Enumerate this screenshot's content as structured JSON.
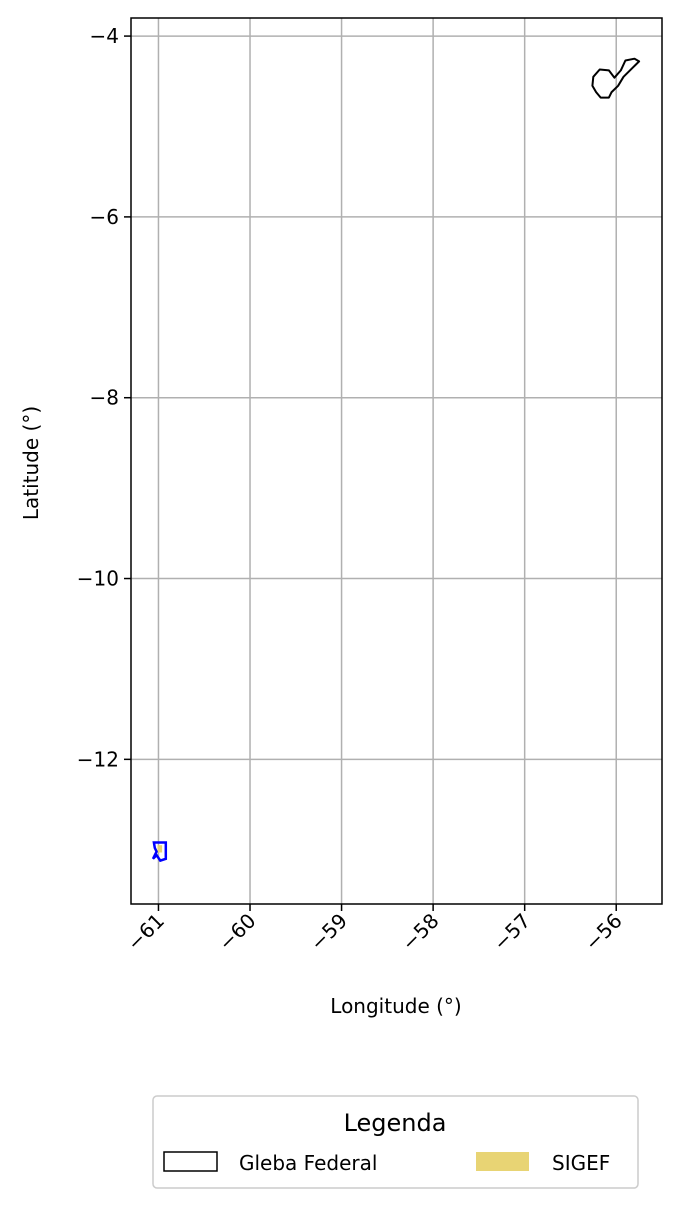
{
  "chart_data": {
    "type": "map",
    "xlabel": "Longitude (°)",
    "ylabel": "Latitude (°)",
    "xlim": [
      -61.3,
      -55.5
    ],
    "ylim": [
      -13.6,
      -3.8
    ],
    "x_ticks": [
      -61,
      -60,
      -59,
      -58,
      -57,
      -56
    ],
    "y_ticks": [
      -4,
      -6,
      -8,
      -10,
      -12
    ],
    "x_tick_labels": [
      "−61",
      "−60",
      "−59",
      "−58",
      "−57",
      "−56"
    ],
    "y_tick_labels": [
      "−4",
      "−6",
      "−8",
      "−10",
      "−12"
    ],
    "x_tick_rotation_deg": 45,
    "grid": true,
    "colors": {
      "gleba_outline": "#000000",
      "sigef_fill": "#e8d474",
      "blue_outline": "#0000ff",
      "grid": "#b0b0b0"
    },
    "features": [
      {
        "layer": "Gleba Federal",
        "style": "outline",
        "lonlat": [
          [
            -56.25,
            -4.45
          ],
          [
            -56.18,
            -4.37
          ],
          [
            -56.08,
            -4.38
          ],
          [
            -56.02,
            -4.46
          ],
          [
            -55.95,
            -4.38
          ],
          [
            -55.9,
            -4.27
          ],
          [
            -55.8,
            -4.25
          ],
          [
            -55.75,
            -4.28
          ],
          [
            -55.82,
            -4.35
          ],
          [
            -55.92,
            -4.45
          ],
          [
            -55.98,
            -4.55
          ],
          [
            -56.05,
            -4.62
          ],
          [
            -56.08,
            -4.68
          ],
          [
            -56.17,
            -4.68
          ],
          [
            -56.22,
            -4.62
          ],
          [
            -56.26,
            -4.55
          ]
        ]
      },
      {
        "layer": "SIGEF",
        "style": "fill",
        "lonlat": [
          [
            -61.01,
            -12.95
          ],
          [
            -60.96,
            -12.95
          ],
          [
            -60.96,
            -13.03
          ],
          [
            -61.01,
            -13.03
          ]
        ]
      },
      {
        "layer": "blue",
        "style": "outline",
        "lonlat": [
          [
            -61.05,
            -12.92
          ],
          [
            -60.92,
            -12.92
          ],
          [
            -60.92,
            -13.1
          ],
          [
            -60.98,
            -13.12
          ],
          [
            -61.02,
            -13.06
          ],
          [
            -61.06,
            -13.1
          ],
          [
            -61.02,
            -13.02
          ],
          [
            -61.04,
            -12.98
          ]
        ]
      }
    ],
    "legend": {
      "title": "Legenda",
      "placement": "bottom-center",
      "entries": [
        {
          "label": "Gleba Federal",
          "style": "outline"
        },
        {
          "label": "SIGEF",
          "style": "fill"
        }
      ]
    }
  }
}
